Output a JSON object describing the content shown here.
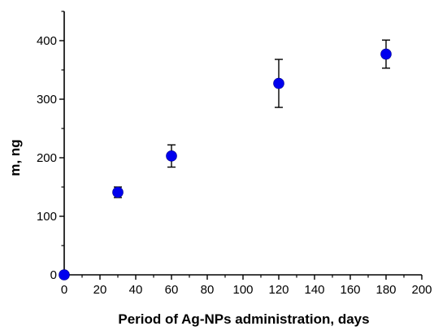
{
  "chart_data": {
    "type": "scatter",
    "xlabel": "Period of Ag-NPs administration, days",
    "ylabel": "m, ng",
    "xlim": [
      0,
      200
    ],
    "ylim": [
      0,
      450
    ],
    "x_ticks": [
      0,
      20,
      40,
      60,
      80,
      100,
      120,
      140,
      160,
      180,
      200
    ],
    "y_ticks": [
      0,
      100,
      200,
      300,
      400
    ],
    "grid": false,
    "legend": "none",
    "marker_color": "#0000ee",
    "series": [
      {
        "x": [
          0,
          30,
          60,
          120,
          180
        ],
        "y": [
          0,
          141,
          203,
          327,
          377
        ],
        "error": [
          0,
          9,
          19,
          41,
          24
        ]
      }
    ]
  }
}
